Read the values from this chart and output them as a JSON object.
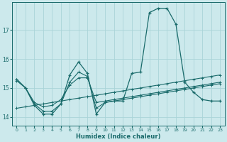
{
  "xlabel": "Humidex (Indice chaleur)",
  "background_color": "#cce9ec",
  "line_color": "#1a6b6b",
  "grid_color": "#aad4d8",
  "xlim": [
    -0.5,
    23.5
  ],
  "ylim": [
    13.7,
    17.95
  ],
  "yticks": [
    14,
    15,
    16,
    17
  ],
  "xticks": [
    0,
    1,
    2,
    3,
    4,
    5,
    6,
    7,
    8,
    9,
    10,
    11,
    12,
    13,
    14,
    15,
    16,
    17,
    18,
    19,
    20,
    21,
    22,
    23
  ],
  "main_series": [
    15.3,
    15.0,
    14.4,
    14.1,
    14.1,
    14.45,
    15.45,
    15.9,
    15.5,
    14.1,
    14.5,
    14.55,
    14.55,
    15.5,
    15.55,
    17.6,
    17.75,
    17.75,
    17.2,
    15.2,
    14.85,
    14.6,
    14.55,
    14.55
  ],
  "trend_series": [
    [
      15.3,
      15.0,
      14.45,
      14.2,
      14.2,
      14.45,
      15.2,
      15.55,
      15.4,
      14.3,
      14.5,
      14.55,
      14.6,
      14.65,
      14.7,
      14.75,
      14.8,
      14.85,
      14.9,
      14.95,
      15.0,
      15.05,
      15.1,
      15.15
    ],
    [
      15.25,
      15.0,
      14.5,
      14.35,
      14.4,
      14.6,
      15.1,
      15.35,
      15.35,
      14.5,
      14.55,
      14.6,
      14.65,
      14.7,
      14.75,
      14.8,
      14.85,
      14.9,
      14.95,
      15.0,
      15.05,
      15.1,
      15.15,
      15.2
    ],
    [
      14.3,
      14.35,
      14.4,
      14.45,
      14.5,
      14.55,
      14.6,
      14.65,
      14.7,
      14.75,
      14.8,
      14.85,
      14.9,
      14.95,
      15.0,
      15.05,
      15.1,
      15.15,
      15.2,
      15.25,
      15.3,
      15.35,
      15.4,
      15.45
    ]
  ]
}
